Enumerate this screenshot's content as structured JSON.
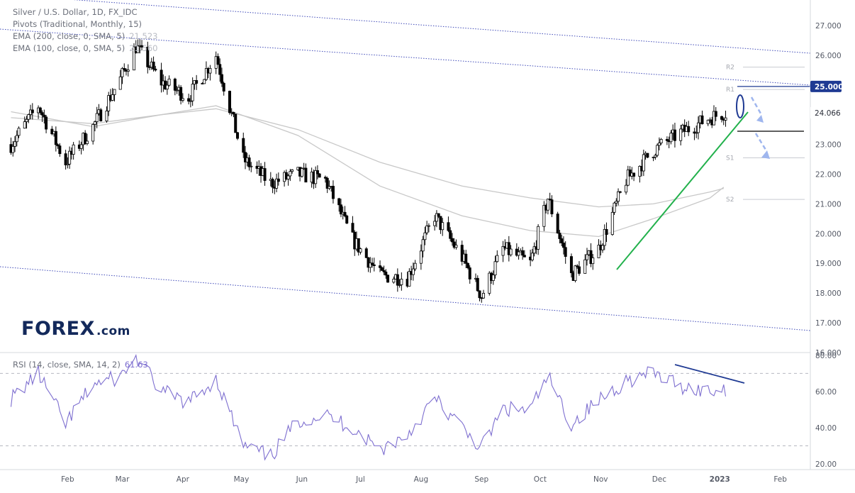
{
  "legend": {
    "title": "Silver / U.S. Dollar, 1D, FX_IDC",
    "pivots": "Pivots (Traditional, Monthly, 15)",
    "ema200": "EMA (200, close, 0, SMA, 5)",
    "ema200_value": "21.523",
    "ema100": "EMA (100, close, 0, SMA, 5)",
    "ema100_value": "21.560",
    "rsi": "RSI (14, close, SMA, 14, 2)",
    "rsi_value": "61.63"
  },
  "logo": {
    "text": "FOREX",
    "suffix": ".com"
  },
  "price_tags": {
    "resistance": "25.000",
    "last": "24.066"
  },
  "colors": {
    "up": "#ffffff",
    "down": "#000000",
    "trend": "#22b14c",
    "channel": "#3f4ab8",
    "rsi_line": "#7e6fd0",
    "ema": "#c8c8c8",
    "tag_bg": "#1f3a93",
    "forecast": "#9fb6ee"
  },
  "chart_data": [
    {
      "type": "line",
      "title": "Silver / U.S. Dollar, 1D, FX_IDC",
      "x_labels": [
        "Feb",
        "Mar",
        "Apr",
        "May",
        "Jun",
        "Jul",
        "Aug",
        "Sep",
        "Oct",
        "Nov",
        "Dec",
        "2023",
        "Feb"
      ],
      "y_ticks": [
        16,
        17,
        18,
        19,
        20,
        21,
        22,
        23,
        24,
        25,
        26,
        27
      ],
      "y_tick_labels": [
        "16.000",
        "17.000",
        "18.000",
        "19.000",
        "20.000",
        "21.000",
        "22.000",
        "23.000",
        "24.000",
        "25.000",
        "26.000",
        "27.000"
      ],
      "ylim": [
        16,
        27.8
      ],
      "series": [
        {
          "name": "Silver / U.S. Dollar",
          "x": [
            "2022-01-03",
            "2022-01-17",
            "2022-01-31",
            "2022-02-14",
            "2022-02-28",
            "2022-03-08",
            "2022-03-21",
            "2022-04-04",
            "2022-04-18",
            "2022-05-02",
            "2022-05-16",
            "2022-05-30",
            "2022-06-13",
            "2022-06-27",
            "2022-07-11",
            "2022-07-25",
            "2022-08-08",
            "2022-08-22",
            "2022-09-01",
            "2022-09-12",
            "2022-09-26",
            "2022-10-05",
            "2022-10-17",
            "2022-10-31",
            "2022-11-14",
            "2022-11-28",
            "2022-12-12",
            "2022-12-27",
            "2023-01-03"
          ],
          "values": [
            23.0,
            24.3,
            22.4,
            23.6,
            25.2,
            26.3,
            25.1,
            24.6,
            26.0,
            22.5,
            21.7,
            22.0,
            21.8,
            19.8,
            18.6,
            18.5,
            20.6,
            19.2,
            17.9,
            19.5,
            19.0,
            21.2,
            18.6,
            19.5,
            21.8,
            22.8,
            23.4,
            23.9,
            24.066
          ]
        },
        {
          "name": "EMA (200, close, 0, SMA, 5)",
          "x": [
            "2022-01-03",
            "2022-02-14",
            "2022-03-21",
            "2022-04-18",
            "2022-05-30",
            "2022-07-11",
            "2022-08-22",
            "2022-09-26",
            "2022-10-31",
            "2022-11-28",
            "2022-12-27",
            "2023-01-03"
          ],
          "values": [
            23.9,
            23.7,
            24.0,
            24.2,
            23.5,
            22.4,
            21.6,
            21.2,
            20.9,
            21.0,
            21.4,
            21.52
          ]
        },
        {
          "name": "EMA (100, close, 0, SMA, 5)",
          "x": [
            "2022-01-03",
            "2022-02-14",
            "2022-03-21",
            "2022-04-18",
            "2022-05-30",
            "2022-07-11",
            "2022-08-22",
            "2022-09-26",
            "2022-10-31",
            "2022-11-28",
            "2022-12-27",
            "2023-01-03"
          ],
          "values": [
            24.1,
            23.6,
            24.0,
            24.3,
            23.3,
            21.6,
            20.6,
            20.1,
            19.9,
            20.5,
            21.2,
            21.56
          ]
        }
      ],
      "pivot_labels": [
        "R2",
        "R1",
        "S1",
        "S2"
      ],
      "pivot_levels": [
        25.6,
        24.85,
        22.55,
        21.15
      ]
    },
    {
      "type": "line",
      "title": "RSI (14, close, SMA, 14, 2)",
      "y_ticks": [
        20,
        40,
        60,
        80
      ],
      "y_tick_labels": [
        "20.00",
        "40.00",
        "60.00",
        "80.00"
      ],
      "ylim": [
        18,
        81
      ],
      "levels": [
        30,
        70
      ],
      "series": [
        {
          "name": "RSI",
          "x": [
            "2022-01-03",
            "2022-01-17",
            "2022-01-31",
            "2022-02-14",
            "2022-02-28",
            "2022-03-08",
            "2022-03-21",
            "2022-04-04",
            "2022-04-18",
            "2022-05-02",
            "2022-05-16",
            "2022-05-30",
            "2022-06-13",
            "2022-06-27",
            "2022-07-11",
            "2022-07-25",
            "2022-08-08",
            "2022-08-22",
            "2022-09-01",
            "2022-09-12",
            "2022-09-26",
            "2022-10-05",
            "2022-10-17",
            "2022-10-31",
            "2022-11-14",
            "2022-11-28",
            "2022-12-12",
            "2022-12-27",
            "2023-01-03"
          ],
          "values": [
            56,
            70,
            42,
            64,
            68,
            79,
            60,
            54,
            67,
            30,
            24,
            44,
            47,
            40,
            28,
            36,
            56,
            40,
            29,
            50,
            50,
            68,
            42,
            55,
            66,
            70,
            63,
            60,
            61.63
          ]
        }
      ]
    }
  ]
}
